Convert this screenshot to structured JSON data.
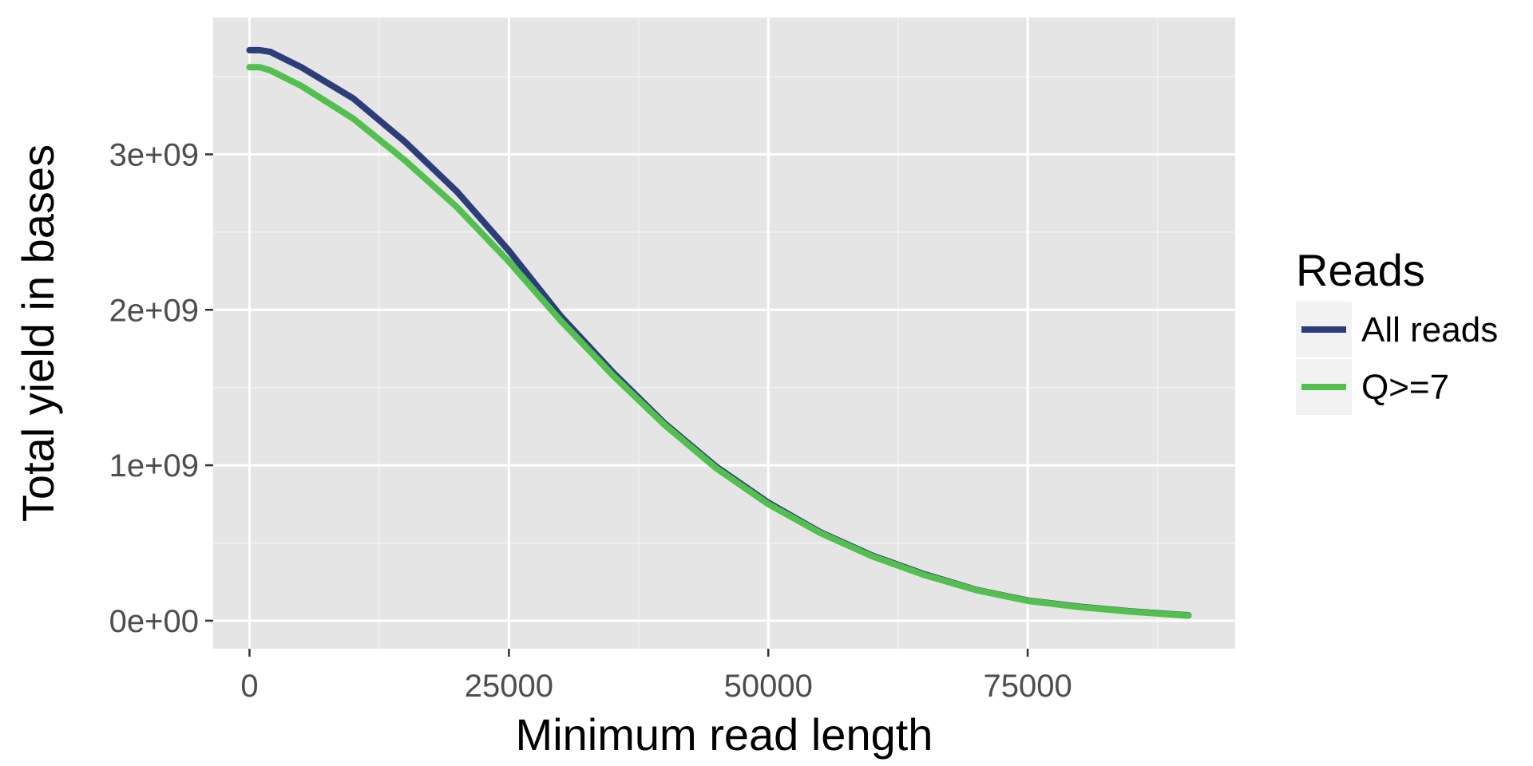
{
  "chart_data": {
    "type": "line",
    "title": "",
    "xlabel": "Minimum read length",
    "ylabel": "Total yield in bases",
    "xlim": [
      -3500,
      95000
    ],
    "ylim": [
      -180000000,
      3880000000
    ],
    "x_ticks": [
      0,
      25000,
      50000,
      75000
    ],
    "x_tick_labels": [
      "0",
      "25000",
      "50000",
      "75000"
    ],
    "y_ticks": [
      0,
      1000000000,
      2000000000,
      3000000000
    ],
    "y_tick_labels": [
      "0e+00",
      "1e+09",
      "2e+09",
      "3e+09"
    ],
    "grid": true,
    "legend": {
      "title": "Reads",
      "position": "right"
    },
    "series": [
      {
        "name": "All reads",
        "color": "#2c3e7a",
        "points": [
          [
            0,
            3670000000
          ],
          [
            1000,
            3670000000
          ],
          [
            2000,
            3660000000
          ],
          [
            5000,
            3560000000
          ],
          [
            10000,
            3360000000
          ],
          [
            15000,
            3080000000
          ],
          [
            20000,
            2760000000
          ],
          [
            25000,
            2380000000
          ],
          [
            30000,
            1960000000
          ],
          [
            35000,
            1600000000
          ],
          [
            40000,
            1270000000
          ],
          [
            45000,
            990000000
          ],
          [
            50000,
            760000000
          ],
          [
            55000,
            570000000
          ],
          [
            60000,
            420000000
          ],
          [
            65000,
            300000000
          ],
          [
            70000,
            200000000
          ],
          [
            75000,
            130000000
          ],
          [
            80000,
            90000000
          ],
          [
            85000,
            60000000
          ],
          [
            90500,
            35000000
          ]
        ]
      },
      {
        "name": "Q>=7",
        "color": "#52bf4e",
        "points": [
          [
            0,
            3560000000
          ],
          [
            1000,
            3560000000
          ],
          [
            2000,
            3540000000
          ],
          [
            5000,
            3440000000
          ],
          [
            10000,
            3230000000
          ],
          [
            15000,
            2960000000
          ],
          [
            20000,
            2660000000
          ],
          [
            25000,
            2310000000
          ],
          [
            30000,
            1930000000
          ],
          [
            35000,
            1580000000
          ],
          [
            40000,
            1260000000
          ],
          [
            45000,
            980000000
          ],
          [
            50000,
            750000000
          ],
          [
            55000,
            565000000
          ],
          [
            60000,
            415000000
          ],
          [
            65000,
            295000000
          ],
          [
            70000,
            198000000
          ],
          [
            75000,
            128000000
          ],
          [
            80000,
            88000000
          ],
          [
            85000,
            58000000
          ],
          [
            90500,
            33000000
          ]
        ]
      }
    ]
  }
}
